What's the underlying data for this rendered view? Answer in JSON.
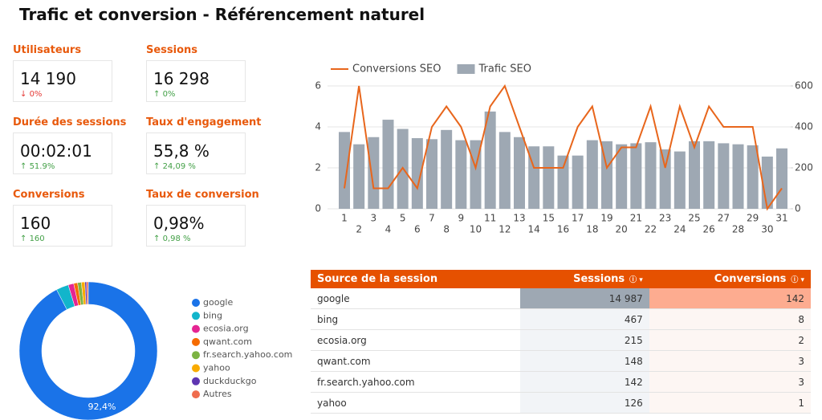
{
  "title": "Trafic et conversion - Référencement naturel",
  "kpis": [
    {
      "label": "Utilisateurs",
      "value": "14 190",
      "delta": "0%",
      "trend": "down"
    },
    {
      "label": "Sessions",
      "value": "16 298",
      "delta": "0%",
      "trend": "up"
    },
    {
      "label": "Durée des sessions",
      "value": "00:02:01",
      "delta": "51.9%",
      "trend": "up"
    },
    {
      "label": "Taux d'engagement",
      "value": "55,8 %",
      "delta": "24,09 %",
      "trend": "up"
    },
    {
      "label": "Conversions",
      "value": "160",
      "delta": "160",
      "trend": "up"
    },
    {
      "label": "Taux de conversion",
      "value": "0,98%",
      "delta": "0,98 %",
      "trend": "up"
    }
  ],
  "chart_data": [
    {
      "type": "combo",
      "categories": [
        "1",
        "2",
        "3",
        "4",
        "5",
        "6",
        "7",
        "8",
        "9",
        "10",
        "11",
        "12",
        "13",
        "14",
        "15",
        "16",
        "17",
        "18",
        "19",
        "20",
        "21",
        "22",
        "23",
        "24",
        "25",
        "26",
        "27",
        "28",
        "29",
        "30",
        "31"
      ],
      "series": [
        {
          "name": "Conversions SEO",
          "type": "line",
          "color": "#e8661c",
          "values": [
            1,
            6,
            1,
            1,
            2,
            1,
            4,
            5,
            4,
            2,
            5,
            6,
            4,
            2,
            2,
            2,
            4,
            5,
            2,
            3,
            3,
            5,
            2,
            5,
            3,
            5,
            4,
            4,
            4,
            0,
            1
          ]
        },
        {
          "name": "Trafic SEO",
          "type": "bar",
          "axis": "y2",
          "color": "#9ea8b3",
          "values": [
            375,
            315,
            350,
            435,
            390,
            345,
            340,
            385,
            335,
            335,
            475,
            375,
            350,
            305,
            305,
            260,
            260,
            335,
            330,
            315,
            320,
            325,
            290,
            280,
            330,
            330,
            320,
            315,
            310,
            255,
            295
          ]
        }
      ],
      "ylim": [
        0,
        6
      ],
      "yticks": [
        0,
        2,
        4,
        6
      ],
      "y2lim": [
        0,
        600
      ],
      "y2ticks": [
        0,
        200,
        400,
        600
      ],
      "grid": true,
      "legend": "top"
    },
    {
      "type": "donut",
      "categories": [
        "google",
        "bing",
        "ecosia.org",
        "qwant.com",
        "fr.search.yahoo.com",
        "yahoo",
        "duckduckgo",
        "Autres"
      ],
      "values": [
        92.4,
        2.9,
        1.3,
        0.9,
        0.9,
        0.8,
        0.4,
        0.4
      ],
      "value_labels": [
        "92,4%",
        null,
        null,
        null,
        null,
        null,
        null,
        null
      ],
      "colors": [
        "#1a73e8",
        "#12b5cb",
        "#e52592",
        "#f56b00",
        "#7cb342",
        "#f9ab00",
        "#5e35b1",
        "#ef6c4e"
      ],
      "legend": "right"
    }
  ],
  "table": {
    "headers": [
      "Source de la session",
      "Sessions",
      "Conversions"
    ],
    "rows": [
      [
        "google",
        "14 987",
        "142"
      ],
      [
        "bing",
        "467",
        "8"
      ],
      [
        "ecosia.org",
        "215",
        "2"
      ],
      [
        "qwant.com",
        "148",
        "3"
      ],
      [
        "fr.search.yahoo.com",
        "142",
        "3"
      ],
      [
        "yahoo",
        "126",
        "1"
      ]
    ]
  }
}
